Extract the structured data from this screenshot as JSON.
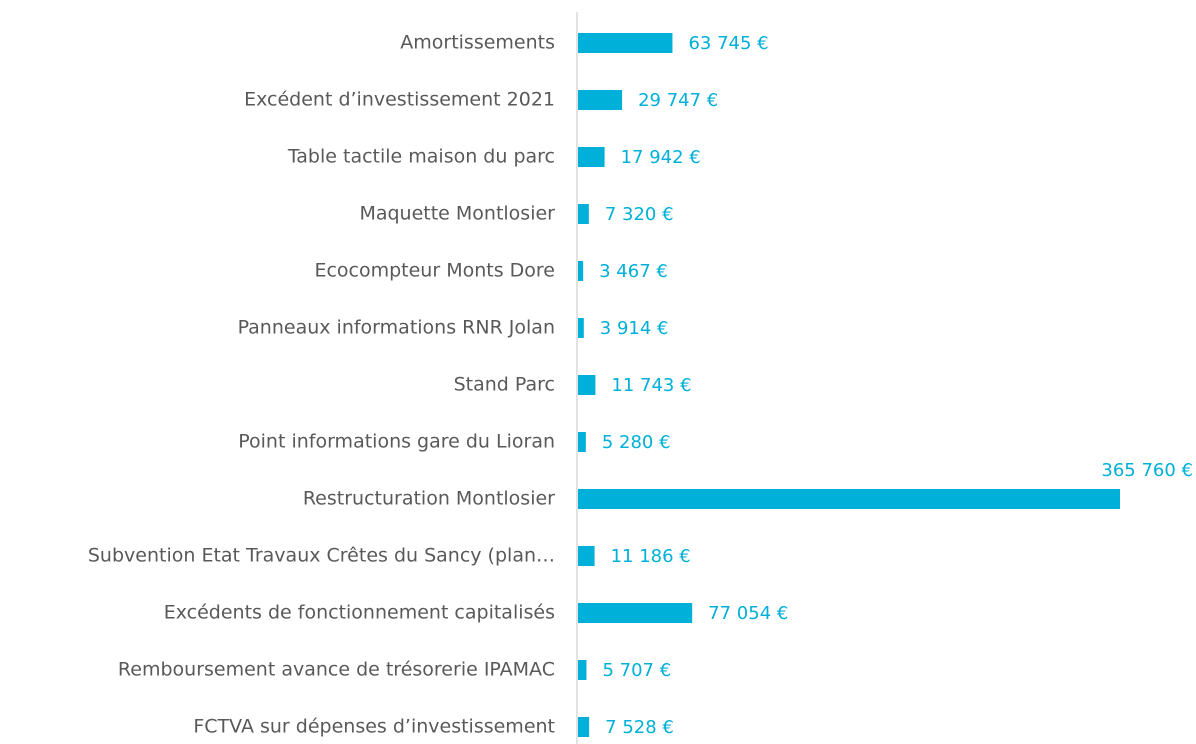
{
  "chart_data": {
    "type": "barh",
    "categories": [
      "Amortissements",
      "Excédent d’investissement 2021",
      "Table tactile maison du parc",
      "Maquette Montlosier",
      "Ecocompteur Monts Dore",
      "Panneaux informations RNR Jolan",
      "Stand Parc",
      "Point informations gare du Lioran",
      "Restructuration Montlosier",
      "Subvention Etat Travaux Crêtes du Sancy (plan…",
      "Excédents de fonctionnement capitalisés",
      "Remboursement avance de trésorerie IPAMAC",
      "FCTVA sur dépenses d’investissement"
    ],
    "values": [
      63745,
      29747,
      17942,
      7320,
      3467,
      3914,
      11743,
      5280,
      365760,
      11186,
      77054,
      5707,
      7528
    ],
    "value_labels": [
      "63 745 €",
      "29 747 €",
      "17 942 €",
      "7 320 €",
      "3 467 €",
      "3 914 €",
      "11 743 €",
      "5 280 €",
      "365 760 €",
      "11 186 €",
      "77 054 €",
      "5 707 €",
      "7 528 €"
    ],
    "color": "#00b0d8"
  }
}
